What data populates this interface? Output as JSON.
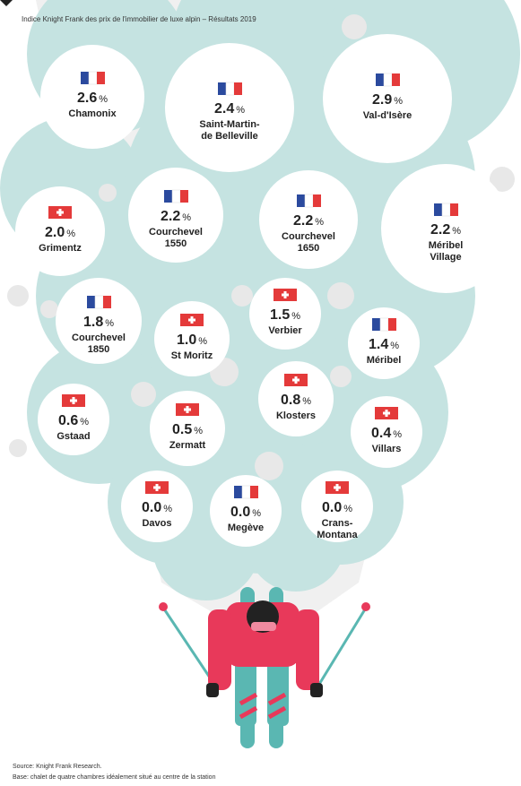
{
  "header": {
    "title": "Indice Knight Frank des prix de l'immobilier de luxe alpin – Résultats 2019"
  },
  "unit": "%",
  "resorts": [
    {
      "name": [
        "Chamonix"
      ],
      "value": "2.6",
      "flag": "fr"
    },
    {
      "name": [
        "Saint-Martin-",
        "de Belleville"
      ],
      "value": "2.4",
      "flag": "fr"
    },
    {
      "name": [
        "Val-d'Isère"
      ],
      "value": "2.9",
      "flag": "fr"
    },
    {
      "name": [
        "Grimentz"
      ],
      "value": "2.0",
      "flag": "ch"
    },
    {
      "name": [
        "Courchevel",
        "1550"
      ],
      "value": "2.2",
      "flag": "fr"
    },
    {
      "name": [
        "Courchevel",
        "1650"
      ],
      "value": "2.2",
      "flag": "fr"
    },
    {
      "name": [
        "Méribel",
        "Village"
      ],
      "value": "2.2",
      "flag": "fr"
    },
    {
      "name": [
        "Courchevel",
        "1850"
      ],
      "value": "1.8",
      "flag": "fr"
    },
    {
      "name": [
        "St Moritz"
      ],
      "value": "1.0",
      "flag": "ch"
    },
    {
      "name": [
        "Verbier"
      ],
      "value": "1.5",
      "flag": "ch"
    },
    {
      "name": [
        "Méribel"
      ],
      "value": "1.4",
      "flag": "fr"
    },
    {
      "name": [
        "Gstaad"
      ],
      "value": "0.6",
      "flag": "ch"
    },
    {
      "name": [
        "Zermatt"
      ],
      "value": "0.5",
      "flag": "ch"
    },
    {
      "name": [
        "Klosters"
      ],
      "value": "0.8",
      "flag": "ch"
    },
    {
      "name": [
        "Villars"
      ],
      "value": "0.4",
      "flag": "ch"
    },
    {
      "name": [
        "Davos"
      ],
      "value": "0.0",
      "flag": "ch"
    },
    {
      "name": [
        "Megève"
      ],
      "value": "0.0",
      "flag": "fr"
    },
    {
      "name": [
        "Crans-",
        "Montana"
      ],
      "value": "0.0",
      "flag": "ch"
    }
  ],
  "footer": {
    "source": "Source: Knight Frank Research.",
    "base": "Base: chalet de quatre chambres idéalement situé au centre de la station"
  }
}
